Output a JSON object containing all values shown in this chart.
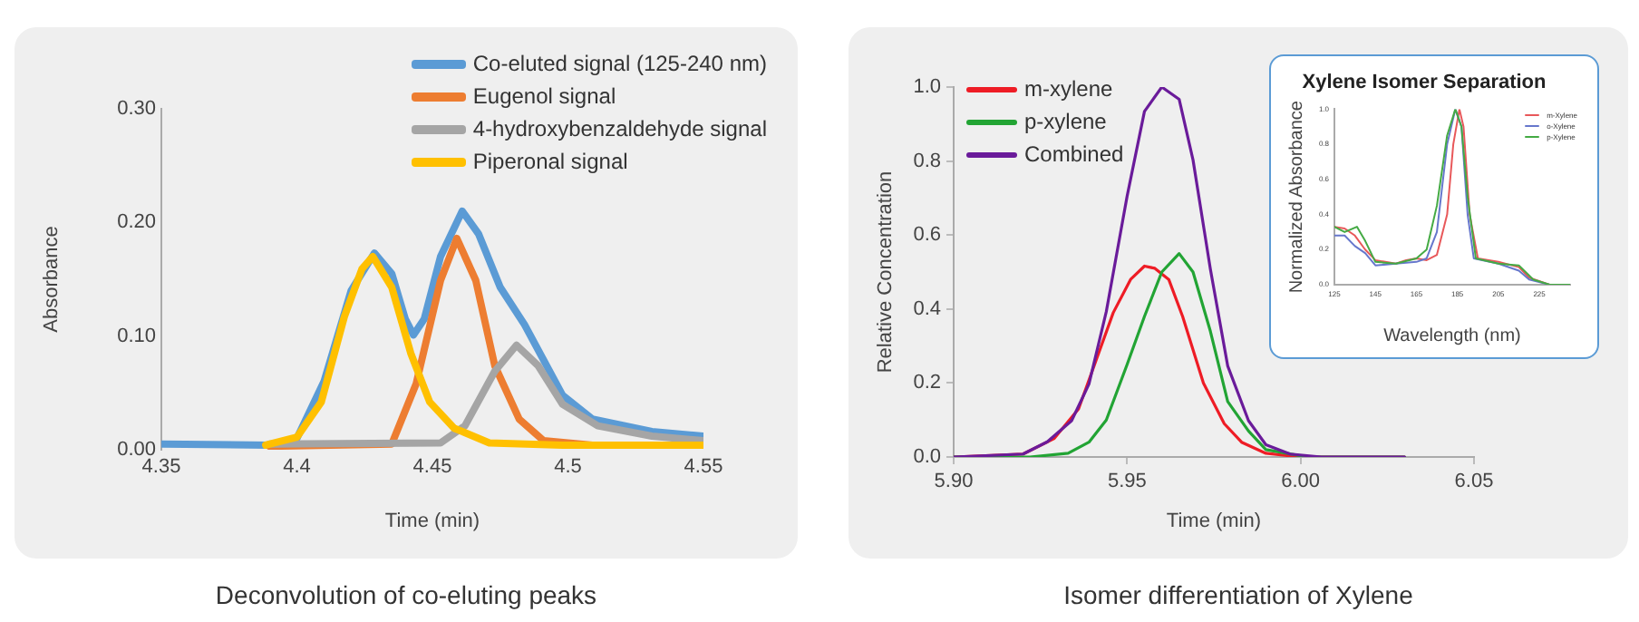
{
  "chart_data": [
    {
      "type": "line",
      "xlabel": "Time (min)",
      "ylabel": "Absorbance",
      "xlim": [
        4.35,
        4.55
      ],
      "ylim": [
        0,
        0.3
      ],
      "xticks": [
        4.35,
        4.4,
        4.45,
        4.5,
        4.55
      ],
      "yticks": [
        {
          "value": 0,
          "label": "0.00"
        },
        {
          "value": 0.1,
          "label": "0.10"
        },
        {
          "value": 0.2,
          "label": "0.20"
        },
        {
          "value": 0.3,
          "label": "0.30"
        }
      ],
      "grid": false,
      "legend": "top right",
      "marker": "none",
      "line_style": "solid",
      "annotations": [
        "Deconvolution of co-eluting peaks"
      ],
      "series": [
        {
          "name": "Co-eluted signal (125-240 nm)",
          "color": "#5b9bd5",
          "x": [
            4.35,
            4.39,
            4.4,
            4.41,
            4.42,
            4.4286,
            4.435,
            4.44,
            4.443,
            4.447,
            4.453,
            4.461,
            4.467,
            4.475,
            4.484,
            4.498,
            4.509,
            4.531,
            4.55
          ],
          "values": [
            0.005,
            0.004,
            0.01,
            0.06,
            0.14,
            0.173,
            0.155,
            0.115,
            0.101,
            0.115,
            0.17,
            0.21,
            0.19,
            0.143,
            0.11,
            0.048,
            0.027,
            0.016,
            0.012
          ]
        },
        {
          "name": "Eugenol signal",
          "color": "#ed7d31",
          "x": [
            4.39,
            4.435,
            4.444,
            4.453,
            4.459,
            4.466,
            4.473,
            4.482,
            4.491,
            4.509,
            4.55
          ],
          "values": [
            0.003,
            0.005,
            0.058,
            0.149,
            0.186,
            0.149,
            0.074,
            0.027,
            0.008,
            0.004,
            0.004
          ]
        },
        {
          "name": "4-hydroxybenzaldehyde signal",
          "color": "#a5a5a5",
          "x": [
            4.39,
            4.453,
            4.462,
            4.473,
            4.481,
            4.489,
            4.498,
            4.511,
            4.531,
            4.55
          ],
          "values": [
            0.005,
            0.006,
            0.021,
            0.069,
            0.092,
            0.074,
            0.04,
            0.021,
            0.012,
            0.008
          ]
        },
        {
          "name": "Piperonal signal",
          "color": "#ffc000",
          "x": [
            4.3885,
            4.4,
            4.409,
            4.4175,
            4.424,
            4.428,
            4.435,
            4.442,
            4.449,
            4.458,
            4.471,
            4.498,
            4.55
          ],
          "values": [
            0.004,
            0.011,
            0.042,
            0.117,
            0.159,
            0.17,
            0.143,
            0.085,
            0.042,
            0.019,
            0.006,
            0.004,
            0.004
          ]
        }
      ]
    },
    {
      "type": "line",
      "xlabel": "Time (min)",
      "ylabel": "Relative Concentration",
      "xlim": [
        5.9,
        6.05
      ],
      "ylim": [
        0,
        1
      ],
      "xticks": [
        {
          "value": 5.9,
          "label": "5.90"
        },
        {
          "value": 5.95,
          "label": "5.95"
        },
        {
          "value": 6,
          "label": "6.00"
        },
        {
          "value": 6.05,
          "label": "6.05"
        }
      ],
      "yticks": [
        {
          "value": 0,
          "label": "0.0"
        },
        {
          "value": 0.2,
          "label": "0.2"
        },
        {
          "value": 0.4,
          "label": "0.4"
        },
        {
          "value": 0.6,
          "label": "0.6"
        },
        {
          "value": 0.8,
          "label": "0.8"
        },
        {
          "value": 1,
          "label": "1.0"
        }
      ],
      "grid": false,
      "legend": "top left",
      "marker": "none",
      "line_style": "solid",
      "annotations": [
        "Isomer differentiation of Xylene"
      ],
      "series": [
        {
          "name": "m-xylene",
          "color": "#ee1c25",
          "x": [
            5.9,
            5.92,
            5.929,
            5.936,
            5.941,
            5.946,
            5.951,
            5.955,
            5.958,
            5.962,
            5.966,
            5.972,
            5.978,
            5.983,
            5.99,
            6.0,
            6.03
          ],
          "values": [
            0,
            0.008,
            0.05,
            0.13,
            0.26,
            0.39,
            0.48,
            0.516,
            0.51,
            0.48,
            0.38,
            0.2,
            0.09,
            0.04,
            0.01,
            0,
            0
          ]
        },
        {
          "name": "p-xylene",
          "color": "#22a434",
          "x": [
            5.9,
            5.922,
            5.933,
            5.939,
            5.944,
            5.95,
            5.955,
            5.96,
            5.965,
            5.969,
            5.974,
            5.979,
            5.985,
            5.99,
            6.002,
            6.03
          ],
          "values": [
            0,
            0,
            0.01,
            0.04,
            0.1,
            0.25,
            0.38,
            0.5,
            0.55,
            0.5,
            0.34,
            0.15,
            0.07,
            0.02,
            0,
            0
          ]
        },
        {
          "name": "Combined",
          "color": "#6a1b9a",
          "x": [
            5.9,
            5.92,
            5.927,
            5.934,
            5.939,
            5.944,
            5.95,
            5.955,
            5.96,
            5.965,
            5.969,
            5.974,
            5.979,
            5.985,
            5.99,
            5.997,
            6.006,
            6.03
          ],
          "values": [
            0,
            0.008,
            0.041,
            0.098,
            0.197,
            0.393,
            0.705,
            0.934,
            1,
            0.967,
            0.803,
            0.508,
            0.246,
            0.098,
            0.033,
            0.008,
            0,
            0
          ]
        }
      ]
    },
    {
      "type": "line",
      "title": "Xylene Isomer Separation",
      "xlabel": "Wavelength (nm)",
      "ylabel": "Normalized Absorbance",
      "xlim": [
        125,
        240
      ],
      "ylim": [
        0,
        1
      ],
      "xticks": [
        125,
        145,
        165,
        185,
        205,
        225
      ],
      "yticks": [
        {
          "value": 0,
          "label": "0.0"
        },
        {
          "value": 0.2,
          "label": "0.2"
        },
        {
          "value": 0.4,
          "label": "0.4"
        },
        {
          "value": 0.6,
          "label": "0.6"
        },
        {
          "value": 0.8,
          "label": "0.8"
        },
        {
          "value": 1,
          "label": "1.0"
        }
      ],
      "grid": false,
      "legend": "top right",
      "marker": "none",
      "line_style": "solid",
      "series": [
        {
          "name": "m-Xylene",
          "color": "#e8585a",
          "x": [
            125,
            130,
            135,
            140,
            145,
            155,
            160,
            165,
            170,
            175,
            180,
            183,
            186,
            188,
            191,
            195,
            205,
            215,
            220,
            230,
            240
          ],
          "values": [
            0.33,
            0.32,
            0.28,
            0.2,
            0.14,
            0.12,
            0.14,
            0.15,
            0.14,
            0.17,
            0.4,
            0.8,
            1,
            0.9,
            0.4,
            0.15,
            0.13,
            0.1,
            0.04,
            0,
            0
          ]
        },
        {
          "name": "o-Xylene",
          "color": "#6677cc",
          "x": [
            125,
            130,
            135,
            140,
            145,
            155,
            165,
            170,
            175,
            180,
            184,
            187,
            190,
            193,
            205,
            215,
            220,
            230,
            240
          ],
          "values": [
            0.28,
            0.28,
            0.22,
            0.18,
            0.11,
            0.12,
            0.13,
            0.15,
            0.3,
            0.8,
            1,
            0.9,
            0.4,
            0.15,
            0.12,
            0.08,
            0.03,
            0,
            0
          ]
        },
        {
          "name": "p-Xylene",
          "color": "#44aa44",
          "x": [
            125,
            130,
            136,
            140,
            145,
            155,
            165,
            170,
            175,
            180,
            184,
            187,
            190,
            194,
            205,
            215,
            222,
            230,
            240
          ],
          "values": [
            0.33,
            0.3,
            0.33,
            0.25,
            0.13,
            0.12,
            0.15,
            0.2,
            0.45,
            0.85,
            1,
            0.9,
            0.5,
            0.15,
            0.12,
            0.11,
            0.03,
            0,
            0
          ]
        }
      ]
    }
  ]
}
